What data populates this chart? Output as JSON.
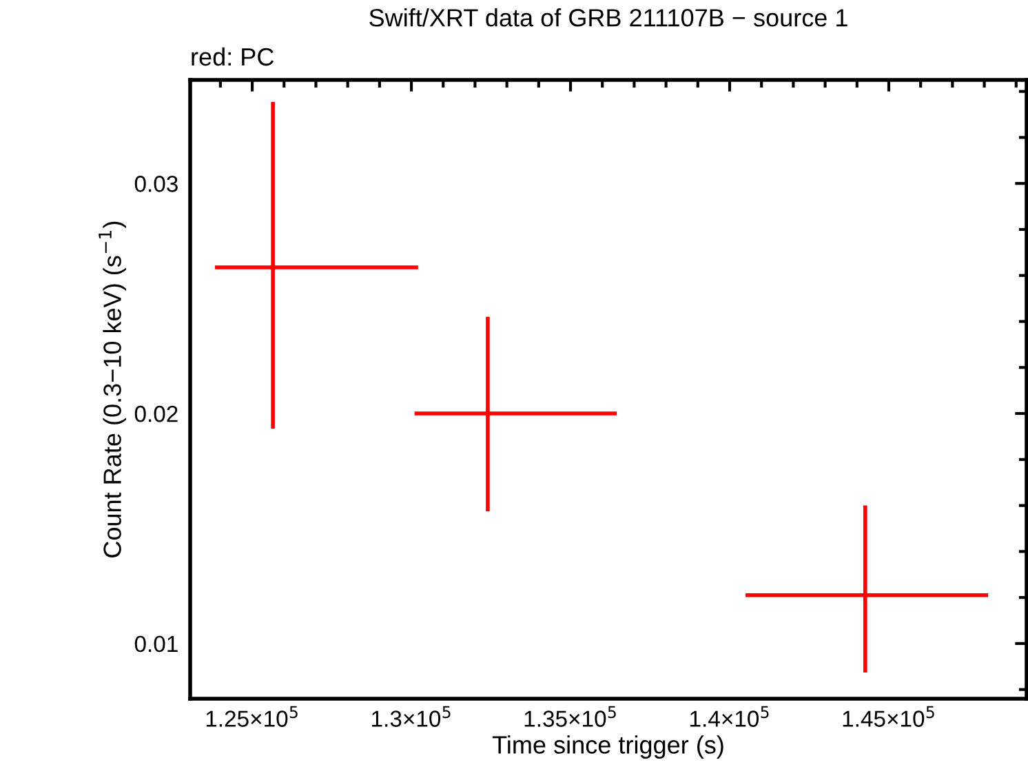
{
  "chart_data": {
    "type": "scatter",
    "title": "Swift/XRT data of GRB 211107B − source 1",
    "annotations": [
      "red: PC"
    ],
    "xlabel": "Time since trigger (s)",
    "ylabel": "Count Rate (0.3−10 keV) (s$^{−1}$)",
    "grid": false,
    "legend": false,
    "xlim": [
      123050,
      149330
    ],
    "ylim": [
      0.0076,
      0.0345
    ],
    "xticks": [
      {
        "value": 124000,
        "label": null
      },
      {
        "value": 125000,
        "label": "1.25×10$^{5}$"
      },
      {
        "value": 126000,
        "label": null
      },
      {
        "value": 127000,
        "label": null
      },
      {
        "value": 128000,
        "label": null
      },
      {
        "value": 129000,
        "label": null
      },
      {
        "value": 130000,
        "label": "1.3×10$^{5}$"
      },
      {
        "value": 131000,
        "label": null
      },
      {
        "value": 132000,
        "label": null
      },
      {
        "value": 133000,
        "label": null
      },
      {
        "value": 134000,
        "label": null
      },
      {
        "value": 135000,
        "label": "1.35×10$^{5}$"
      },
      {
        "value": 136000,
        "label": null
      },
      {
        "value": 137000,
        "label": null
      },
      {
        "value": 138000,
        "label": null
      },
      {
        "value": 139000,
        "label": null
      },
      {
        "value": 140000,
        "label": "1.4×10$^{5}$"
      },
      {
        "value": 141000,
        "label": null
      },
      {
        "value": 142000,
        "label": null
      },
      {
        "value": 143000,
        "label": null
      },
      {
        "value": 144000,
        "label": null
      },
      {
        "value": 145000,
        "label": "1.45×10$^{5}$"
      },
      {
        "value": 146000,
        "label": null
      },
      {
        "value": 147000,
        "label": null
      },
      {
        "value": 148000,
        "label": null
      },
      {
        "value": 149000,
        "label": null
      }
    ],
    "yticks": [
      {
        "value": 0.008,
        "label": null
      },
      0.01,
      {
        "value": 0.012,
        "label": null
      },
      {
        "value": 0.014,
        "label": null
      },
      {
        "value": 0.016,
        "label": null
      },
      {
        "value": 0.018,
        "label": null
      },
      0.02,
      {
        "value": 0.022,
        "label": null
      },
      {
        "value": 0.024,
        "label": null
      },
      {
        "value": 0.026,
        "label": null
      },
      {
        "value": 0.028,
        "label": null
      },
      0.03,
      {
        "value": 0.032,
        "label": null
      },
      {
        "value": 0.034,
        "label": null
      }
    ],
    "series": [
      {
        "color": "#ff0000",
        "x": [
          125650,
          132400,
          144260
        ],
        "values": [
          0.02635,
          0.02,
          0.0121
        ],
        "errors": [
          [
            0.01934,
            0.03354
          ],
          [
            0.01575,
            0.0242
          ],
          [
            0.00874,
            0.016
          ]
        ],
        "xerrors": [
          [
            123830,
            130210
          ],
          [
            130100,
            136450
          ],
          [
            140500,
            148120
          ]
        ]
      }
    ]
  }
}
